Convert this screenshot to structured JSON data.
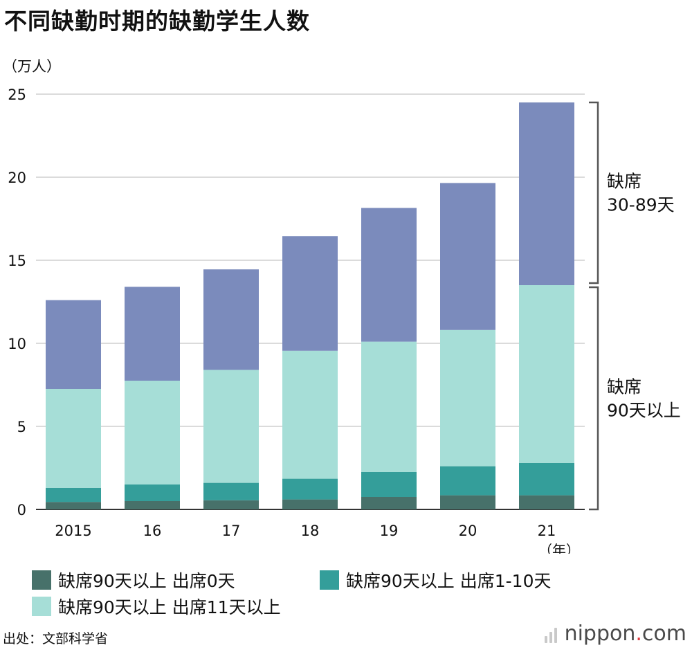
{
  "title": "不同缺勤时期的缺勤学生人数",
  "unit_label": "（万人）",
  "source": "出处：文部科学省",
  "brand": {
    "name": "nippon",
    "dot": ".",
    "suffix": "com",
    "dot_color": "#e0393e"
  },
  "chart_data": {
    "type": "bar",
    "stacked": true,
    "categories": [
      "2015",
      "16",
      "17",
      "18",
      "19",
      "20",
      "21"
    ],
    "x_unit": "（年）",
    "ylim": [
      0,
      25
    ],
    "yticks": [
      0,
      5,
      10,
      15,
      20,
      25
    ],
    "grid": true,
    "series": [
      {
        "name": "缺席90天以上 出席0天",
        "color": "#47716a",
        "values": [
          0.45,
          0.5,
          0.55,
          0.6,
          0.75,
          0.85,
          0.85
        ]
      },
      {
        "name": "缺席90天以上 出席1-10天",
        "color": "#349e9a",
        "values": [
          0.85,
          1.0,
          1.05,
          1.25,
          1.5,
          1.75,
          1.95
        ]
      },
      {
        "name": "缺席90天以上 出席11天以上",
        "color": "#a6ded7",
        "values": [
          5.95,
          6.25,
          6.8,
          7.7,
          7.85,
          8.2,
          10.7
        ]
      },
      {
        "color": "#7b8bbc",
        "values": [
          5.35,
          5.65,
          6.05,
          6.9,
          8.05,
          8.85,
          11.0
        ]
      }
    ],
    "brackets": [
      {
        "label_lines": [
          "缺席",
          "30-89天"
        ],
        "from": 13.5,
        "to": 25
      },
      {
        "label_lines": [
          "缺席",
          "90天以上"
        ],
        "from": 0,
        "to": 13.5
      }
    ],
    "legend_position": "bottom"
  }
}
